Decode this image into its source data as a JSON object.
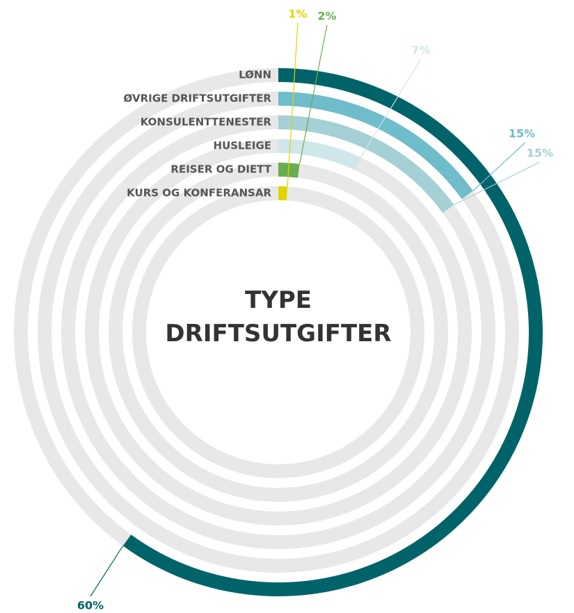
{
  "chart_data": {
    "type": "radial_bar",
    "title": "TYPE DRIFTSUTGIFTER",
    "categories": [
      "LØNN",
      "ØVRIGE DRIFTSUTGIFTER",
      "KONSULENTTENESTER",
      "HUSLEIGE",
      "REISER OG DIETT",
      "KURS OG KONFERANSAR"
    ],
    "values": [
      60,
      15,
      15,
      7,
      2,
      1
    ],
    "value_labels": [
      "60%",
      "15%",
      "15%",
      "7%",
      "2%",
      "1%"
    ],
    "colors": [
      "#00636a",
      "#6fbccb",
      "#a4d0d6",
      "#cfe7ea",
      "#6aad4e",
      "#e2d400"
    ],
    "label_colors": [
      "#00636a",
      "#6fbccb",
      "#a4d0d6",
      "#cfe7ea",
      "#6aad4e",
      "#e2d400"
    ],
    "ylim": [
      0,
      100
    ]
  }
}
